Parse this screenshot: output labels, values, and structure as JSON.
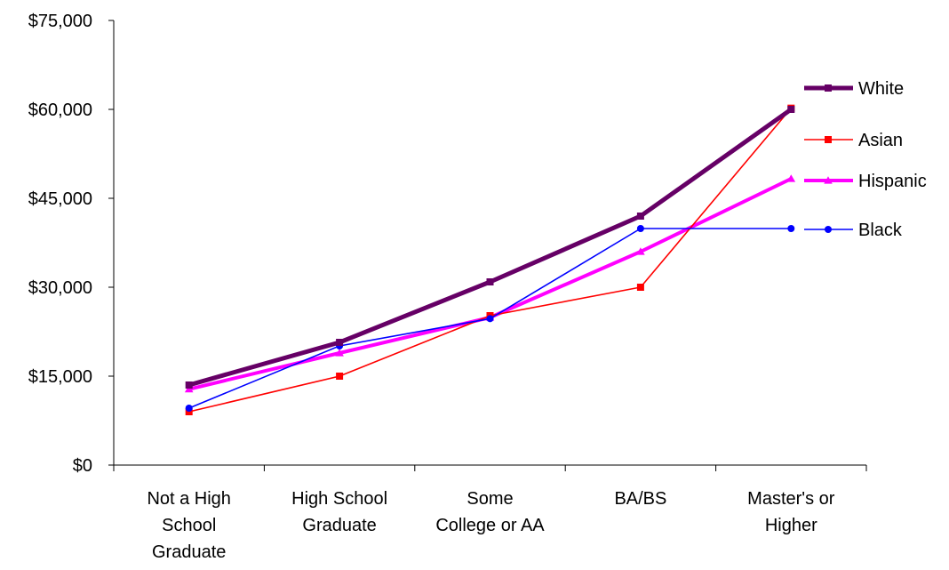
{
  "chart_data": {
    "type": "line",
    "title": "",
    "xlabel": "",
    "ylabel": "",
    "categories": [
      [
        "Not a High",
        "School",
        "Graduate"
      ],
      [
        "High School",
        "Graduate"
      ],
      [
        "Some",
        "College or AA"
      ],
      [
        "BA/BS"
      ],
      [
        "Master's or",
        "Higher"
      ]
    ],
    "ylim": [
      0,
      75000
    ],
    "yticks": [
      0,
      15000,
      30000,
      45000,
      60000,
      75000
    ],
    "ytick_labels": [
      "$0",
      "$15,000",
      "$30,000",
      "$45,000",
      "$60,000",
      "$75,000"
    ],
    "grid": false,
    "legend_position": "right",
    "series": [
      {
        "name": "White",
        "values": [
          13500,
          20700,
          30900,
          42000,
          60000
        ],
        "color": "#660066",
        "marker": "square",
        "thick": true
      },
      {
        "name": "Asian",
        "values": [
          9000,
          15000,
          25200,
          30000,
          60200
        ],
        "color": "#ff0000",
        "marker": "square",
        "thick": false
      },
      {
        "name": "Hispanic",
        "values": [
          12800,
          18900,
          24900,
          36000,
          48300
        ],
        "color": "#ff00ff",
        "marker": "triangle",
        "thick": true
      },
      {
        "name": "Black",
        "values": [
          9600,
          20100,
          24700,
          39900,
          39900
        ],
        "color": "#0000ff",
        "marker": "circle",
        "thick": false
      }
    ]
  }
}
